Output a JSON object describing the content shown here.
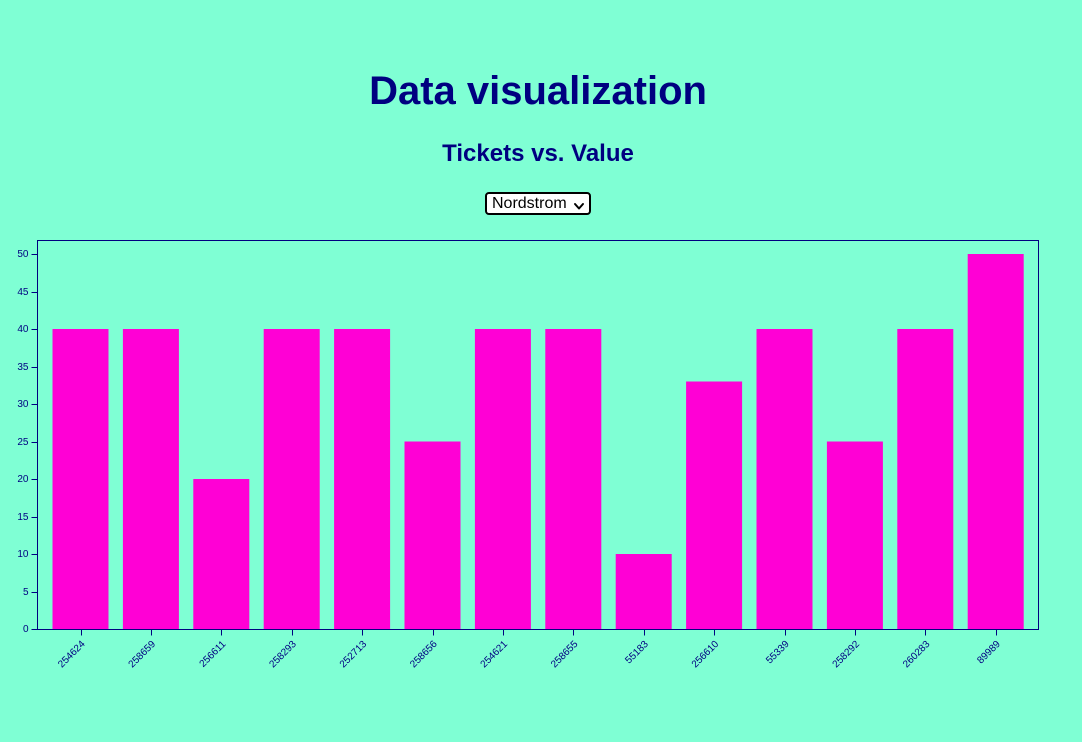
{
  "header": {
    "title": "Data visualization",
    "subtitle": "Tickets vs. Value"
  },
  "controls": {
    "store_select": {
      "selected": "Nordstrom"
    }
  },
  "colors": {
    "background": "#7fffd4",
    "text": "#000080",
    "bar": "#ff00d5"
  },
  "chart_data": {
    "type": "bar",
    "categories": [
      "254624",
      "258659",
      "256611",
      "258293",
      "252713",
      "258656",
      "254621",
      "258655",
      "55183",
      "256610",
      "55339",
      "258292",
      "260283",
      "89989"
    ],
    "values": [
      40,
      40,
      20,
      40,
      40,
      25,
      40,
      40,
      10,
      33,
      40,
      25,
      40,
      50
    ],
    "ylim": [
      0,
      50
    ],
    "yticks": [
      0,
      5,
      10,
      15,
      20,
      25,
      30,
      35,
      40,
      45,
      50
    ],
    "grid": false,
    "title": "",
    "xlabel": "",
    "ylabel": ""
  }
}
